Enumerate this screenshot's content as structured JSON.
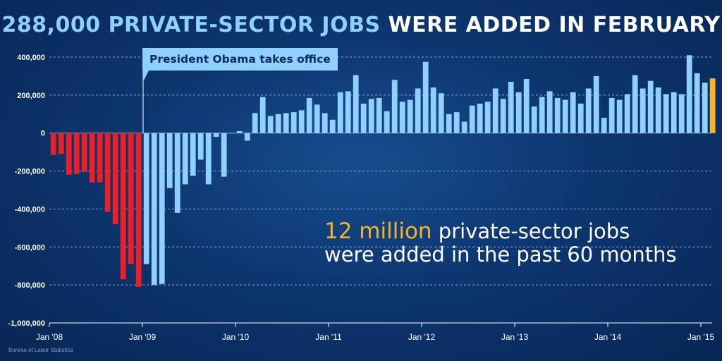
{
  "title": {
    "highlight": "288,000 PRIVATE-SECTOR JOBS",
    "rest": " WERE ADDED IN FEBRUARY"
  },
  "annotation": {
    "label": "President Obama takes office",
    "at_month_index": 12
  },
  "callout": {
    "highlight": "12 million",
    "line1_rest": " private-sector jobs",
    "line2": "were added in the past 60 months"
  },
  "source": "Bureau of Labor Statistics",
  "colors": {
    "pre_inauguration": "#e8202a",
    "post_inauguration": "#8fd0ff",
    "latest_month": "#f5b325",
    "title_highlight": "#8fd0ff",
    "callout_highlight": "#f5b325"
  },
  "chart_data": {
    "type": "bar",
    "title": "288,000 PRIVATE-SECTOR JOBS WERE ADDED IN FEBRUARY",
    "xlabel": "",
    "ylabel": "",
    "x_start": "Jan '08",
    "x_end": "Feb '15",
    "ylim": [
      -1000000,
      400000
    ],
    "y_ticks": [
      400000,
      200000,
      0,
      -200000,
      -400000,
      -600000,
      -800000,
      -1000000
    ],
    "y_tick_labels": [
      "400,000",
      "200,000",
      "0",
      "-200,000",
      "-400,000",
      "-600,000",
      "-800,000",
      "-1,000,000"
    ],
    "x_tick_labels": [
      "Jan '08",
      "Jan '09",
      "Jan '10",
      "Jan '11",
      "Jan '12",
      "Jan '13",
      "Jan '14",
      "Jan '15"
    ],
    "x_tick_month_index": [
      0,
      12,
      24,
      36,
      48,
      60,
      72,
      84
    ],
    "grid": true,
    "legend": "none",
    "values": [
      -115000,
      -110000,
      -220000,
      -215000,
      -205000,
      -260000,
      -260000,
      -415000,
      -480000,
      -770000,
      -690000,
      -810000,
      -690000,
      -800000,
      -795000,
      -290000,
      -420000,
      -270000,
      -225000,
      -140000,
      -270000,
      -20000,
      -230000,
      0,
      10000,
      -40000,
      105000,
      190000,
      90000,
      100000,
      105000,
      110000,
      120000,
      185000,
      150000,
      105000,
      70000,
      215000,
      220000,
      305000,
      155000,
      180000,
      185000,
      115000,
      280000,
      165000,
      175000,
      235000,
      375000,
      240000,
      210000,
      100000,
      110000,
      60000,
      145000,
      155000,
      165000,
      235000,
      180000,
      270000,
      215000,
      285000,
      140000,
      190000,
      220000,
      185000,
      175000,
      215000,
      155000,
      235000,
      300000,
      80000,
      185000,
      175000,
      205000,
      305000,
      235000,
      275000,
      240000,
      205000,
      215000,
      205000,
      410000,
      315000,
      265000,
      288000
    ]
  }
}
